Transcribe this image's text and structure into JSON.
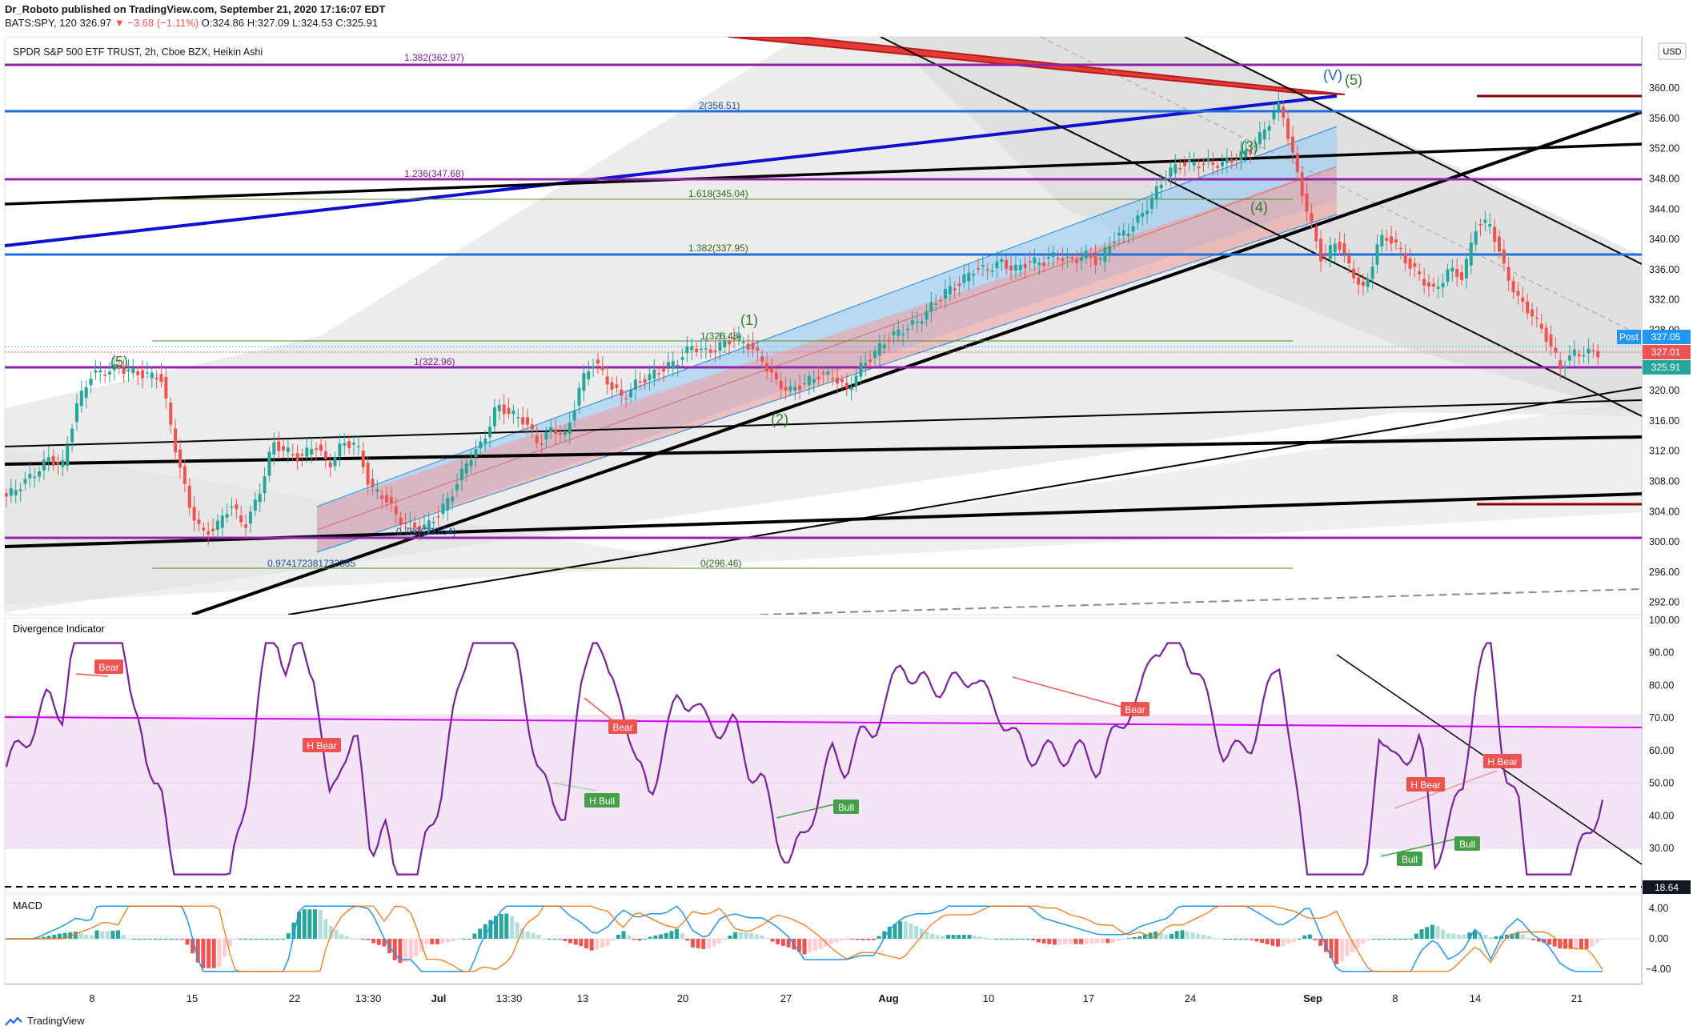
{
  "header": {
    "publisher": "Dr_Roboto published on TradingView.com, September 21, 2020 17:16:07 EDT",
    "symbol": "BATS:SPY, 120",
    "price": "326.97",
    "change": "−3.68 (−1.11%)",
    "ohlc": "O:324.86 H:327.09 L:324.53 C:325.91"
  },
  "main_pane": {
    "title": "SPDR S&P 500 ETF TRUST, 2h, Cboe BZX, Heikin Ashi",
    "currency": "USD",
    "post_label": "Post",
    "price_tags": [
      "327.05",
      "327.01",
      "325.91"
    ],
    "y_ticks": [
      "360.00",
      "356.00",
      "352.00",
      "348.00",
      "344.00",
      "340.00",
      "336.00",
      "332.00",
      "328.00",
      "320.00",
      "316.00",
      "312.00",
      "308.00",
      "304.00",
      "300.00",
      "296.00",
      "292.00"
    ],
    "fib_labels": [
      "1.382(362.97)",
      "2(356.51)",
      "1.236(347.68)",
      "1.618(345.04)",
      "1.382(337.95)",
      "1(326.48)",
      "1(322.96)",
      "0.786(300.54)",
      "0.974172381733385",
      "0(296.46)"
    ],
    "wave_labels": [
      "(V)",
      "(5)",
      "(3)",
      "(4)",
      "(1)",
      "(2)",
      "(5)"
    ]
  },
  "divergence_pane": {
    "title": "Divergence Indicator",
    "y_ticks": [
      "100.00",
      "90.00",
      "80.00",
      "70.00",
      "60.00",
      "50.00",
      "40.00",
      "30.00"
    ],
    "level_tag": "18.64",
    "signals": [
      "Bear",
      "H Bear",
      "Bear",
      "H Bull",
      "Bull",
      "Bear",
      "Bull",
      "H Bear",
      "H Bear",
      "Bull"
    ]
  },
  "macd_pane": {
    "title": "MACD",
    "y_ticks": [
      "4.00",
      "0.00",
      "−4.00"
    ]
  },
  "x_axis": [
    "8",
    "15",
    "22",
    "13:30",
    "Jul",
    "13:30",
    "13",
    "20",
    "27",
    "Aug",
    "10",
    "17",
    "24",
    "Sep",
    "8",
    "14",
    "21"
  ],
  "footer": {
    "brand": "TradingView"
  },
  "colors": {
    "up": "#26a69a",
    "down": "#ef5350",
    "purple": "#9c27b0",
    "blue": "#1565c0",
    "rsi": "#7b1fa2",
    "macd_line": "#2196f3",
    "signal_line": "#ff6d00"
  },
  "chart_data": {
    "type": "candlestick",
    "title": "SPDR S&P 500 ETF TRUST, 2h, Cboe BZX, Heikin Ashi",
    "ylim": [
      290,
      365
    ],
    "x_labels": [
      "8",
      "15",
      "22",
      "13:30",
      "Jul",
      "13:30",
      "13",
      "20",
      "27",
      "Aug",
      "10",
      "17",
      "24",
      "Sep",
      "8",
      "14",
      "21"
    ],
    "close_path": [
      [
        0,
        306
      ],
      [
        2,
        309
      ],
      [
        3,
        311
      ],
      [
        4,
        310
      ],
      [
        5,
        318
      ],
      [
        6,
        322
      ],
      [
        8,
        323
      ],
      [
        10,
        322
      ],
      [
        11,
        322
      ],
      [
        12,
        313
      ],
      [
        13,
        305
      ],
      [
        14,
        301
      ],
      [
        15,
        302
      ],
      [
        16,
        305
      ],
      [
        17,
        302
      ],
      [
        18,
        306
      ],
      [
        19,
        313
      ],
      [
        20,
        312
      ],
      [
        21,
        311
      ],
      [
        22,
        313
      ],
      [
        23,
        310
      ],
      [
        24,
        313
      ],
      [
        25,
        313
      ],
      [
        26,
        307
      ],
      [
        27,
        306
      ],
      [
        28,
        303
      ],
      [
        29,
        302
      ],
      [
        30,
        302
      ],
      [
        31,
        304
      ],
      [
        32,
        307
      ],
      [
        33,
        311
      ],
      [
        34,
        313
      ],
      [
        35,
        318
      ],
      [
        36,
        317
      ],
      [
        37,
        316
      ],
      [
        38,
        313
      ],
      [
        39,
        315
      ],
      [
        40,
        314
      ],
      [
        41,
        321
      ],
      [
        42,
        324
      ],
      [
        43,
        321
      ],
      [
        44,
        319
      ],
      [
        45,
        321
      ],
      [
        46,
        322
      ],
      [
        47,
        323
      ],
      [
        48,
        324
      ],
      [
        49,
        326
      ],
      [
        50,
        325
      ],
      [
        51,
        326
      ],
      [
        52,
        327
      ],
      [
        53,
        326
      ],
      [
        54,
        324
      ],
      [
        55,
        321
      ],
      [
        56,
        320
      ],
      [
        57,
        321
      ],
      [
        58,
        322
      ],
      [
        59,
        322
      ],
      [
        60,
        320
      ],
      [
        61,
        323
      ],
      [
        62,
        325
      ],
      [
        63,
        327
      ],
      [
        64,
        328
      ],
      [
        65,
        329
      ],
      [
        66,
        331
      ],
      [
        67,
        333
      ],
      [
        68,
        334
      ],
      [
        69,
        336
      ],
      [
        70,
        336
      ],
      [
        71,
        337
      ],
      [
        72,
        336
      ],
      [
        73,
        337
      ],
      [
        74,
        337
      ],
      [
        75,
        338
      ],
      [
        76,
        337
      ],
      [
        77,
        338
      ],
      [
        78,
        337
      ],
      [
        79,
        340
      ],
      [
        80,
        341
      ],
      [
        81,
        343
      ],
      [
        82,
        346
      ],
      [
        83,
        349
      ],
      [
        84,
        350
      ],
      [
        85,
        350
      ],
      [
        86,
        350
      ],
      [
        87,
        350
      ],
      [
        88,
        351
      ],
      [
        89,
        352
      ],
      [
        90,
        355
      ],
      [
        91,
        358
      ],
      [
        92,
        350
      ],
      [
        93,
        343
      ],
      [
        94,
        337
      ],
      [
        95,
        340
      ],
      [
        96,
        336
      ],
      [
        97,
        333
      ],
      [
        98,
        340
      ],
      [
        99,
        340
      ],
      [
        100,
        337
      ],
      [
        101,
        335
      ],
      [
        102,
        333
      ],
      [
        103,
        336
      ],
      [
        104,
        335
      ],
      [
        105,
        342
      ],
      [
        106,
        342
      ],
      [
        107,
        336
      ],
      [
        108,
        332
      ],
      [
        109,
        330
      ],
      [
        110,
        327
      ],
      [
        111,
        323
      ],
      [
        112,
        325
      ],
      [
        113,
        325
      ]
    ],
    "rsi_range": [
      18.64,
      100
    ],
    "rsi_levels": {
      "overbought": 70,
      "oversold": 30
    },
    "macd_range": [
      -4.5,
      4.5
    ]
  }
}
